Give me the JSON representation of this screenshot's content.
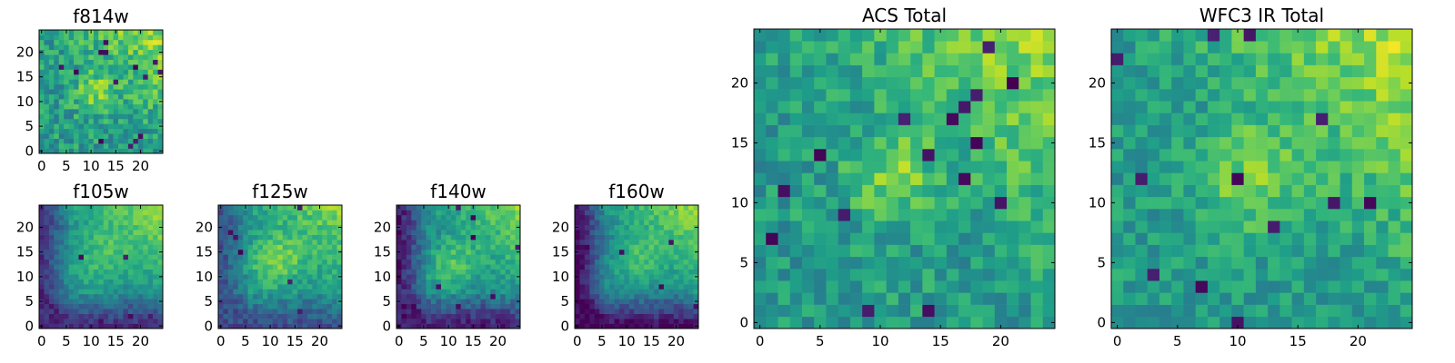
{
  "chart_data": [
    {
      "type": "heatmap",
      "title": "f814w",
      "colormap": "viridis",
      "grid_size": 25,
      "xlim": [
        0,
        24
      ],
      "ylim": [
        0,
        24
      ],
      "xticks": [
        0,
        5,
        10,
        15,
        20
      ],
      "yticks": [
        0,
        5,
        10,
        15,
        20
      ],
      "seed": 11,
      "pattern": {
        "base": 0.55,
        "center": [
          11,
          12
        ],
        "center_amp": 0.25,
        "center_width": 3,
        "gradient_to": "top-right",
        "gradient_amp": 0.3,
        "noise": 0.16,
        "dark_pixels": 14
      }
    },
    {
      "type": "heatmap",
      "title": "f105w",
      "colormap": "viridis",
      "grid_size": 25,
      "xlim": [
        0,
        24
      ],
      "ylim": [
        0,
        24
      ],
      "xticks": [
        0,
        5,
        10,
        15,
        20
      ],
      "yticks": [
        0,
        5,
        10,
        15,
        20
      ],
      "seed": 23,
      "pattern": {
        "base": 0.42,
        "center": [
          11,
          13
        ],
        "center_amp": 0.25,
        "center_width": 5,
        "gradient_to": "top-right",
        "gradient_amp": 0.45,
        "edge_dark": "left-bottom",
        "edge_amp": 0.3,
        "noise": 0.08,
        "dark_pixels": 6
      }
    },
    {
      "type": "heatmap",
      "title": "f125w",
      "colormap": "viridis",
      "grid_size": 25,
      "xlim": [
        0,
        24
      ],
      "ylim": [
        0,
        24
      ],
      "xticks": [
        0,
        5,
        10,
        15,
        20
      ],
      "yticks": [
        0,
        5,
        10,
        15,
        20
      ],
      "seed": 37,
      "pattern": {
        "base": 0.48,
        "center": [
          11,
          13
        ],
        "center_amp": 0.3,
        "center_width": 4,
        "gradient_to": "top-right",
        "gradient_amp": 0.35,
        "edge_dark": "left-bottom",
        "edge_amp": 0.25,
        "noise": 0.1,
        "dark_pixels": 6
      }
    },
    {
      "type": "heatmap",
      "title": "f140w",
      "colormap": "viridis",
      "grid_size": 25,
      "xlim": [
        0,
        24
      ],
      "ylim": [
        0,
        24
      ],
      "xticks": [
        0,
        5,
        10,
        15,
        20
      ],
      "yticks": [
        0,
        5,
        10,
        15,
        20
      ],
      "seed": 51,
      "pattern": {
        "base": 0.42,
        "center": [
          11,
          12
        ],
        "center_amp": 0.3,
        "center_width": 4,
        "gradient_to": "top-right",
        "gradient_amp": 0.4,
        "edge_dark": "left-bottom",
        "edge_amp": 0.35,
        "noise": 0.1,
        "dark_pixels": 8
      }
    },
    {
      "type": "heatmap",
      "title": "f160w",
      "colormap": "viridis",
      "grid_size": 25,
      "xlim": [
        0,
        24
      ],
      "ylim": [
        0,
        24
      ],
      "xticks": [
        0,
        5,
        10,
        15,
        20
      ],
      "yticks": [
        0,
        5,
        10,
        15,
        20
      ],
      "seed": 67,
      "pattern": {
        "base": 0.42,
        "center": [
          12,
          13
        ],
        "center_amp": 0.25,
        "center_width": 4,
        "gradient_to": "top-right",
        "gradient_amp": 0.45,
        "edge_dark": "left-bottom",
        "edge_amp": 0.4,
        "noise": 0.08,
        "dark_pixels": 8
      }
    },
    {
      "type": "heatmap",
      "title": "ACS Total",
      "colormap": "viridis",
      "grid_size": 25,
      "xlim": [
        0,
        24
      ],
      "ylim": [
        0,
        24
      ],
      "xticks": [
        0,
        5,
        10,
        15,
        20
      ],
      "yticks": [
        0,
        5,
        10,
        15,
        20
      ],
      "seed": 79,
      "pattern": {
        "base": 0.55,
        "center": [
          11,
          12
        ],
        "center_amp": 0.25,
        "center_width": 2.5,
        "gradient_to": "top-right",
        "gradient_amp": 0.3,
        "noise": 0.14,
        "dark_pixels": 16
      }
    },
    {
      "type": "heatmap",
      "title": "WFC3 IR Total",
      "colormap": "viridis",
      "grid_size": 25,
      "xlim": [
        0,
        24
      ],
      "ylim": [
        0,
        24
      ],
      "xticks": [
        0,
        5,
        10,
        15,
        20
      ],
      "yticks": [
        0,
        5,
        10,
        15,
        20
      ],
      "seed": 97,
      "pattern": {
        "base": 0.55,
        "center": [
          11,
          12
        ],
        "center_amp": 0.25,
        "center_width": 3,
        "gradient_to": "top-right",
        "gradient_amp": 0.35,
        "noise": 0.12,
        "dark_pixels": 12
      }
    }
  ]
}
